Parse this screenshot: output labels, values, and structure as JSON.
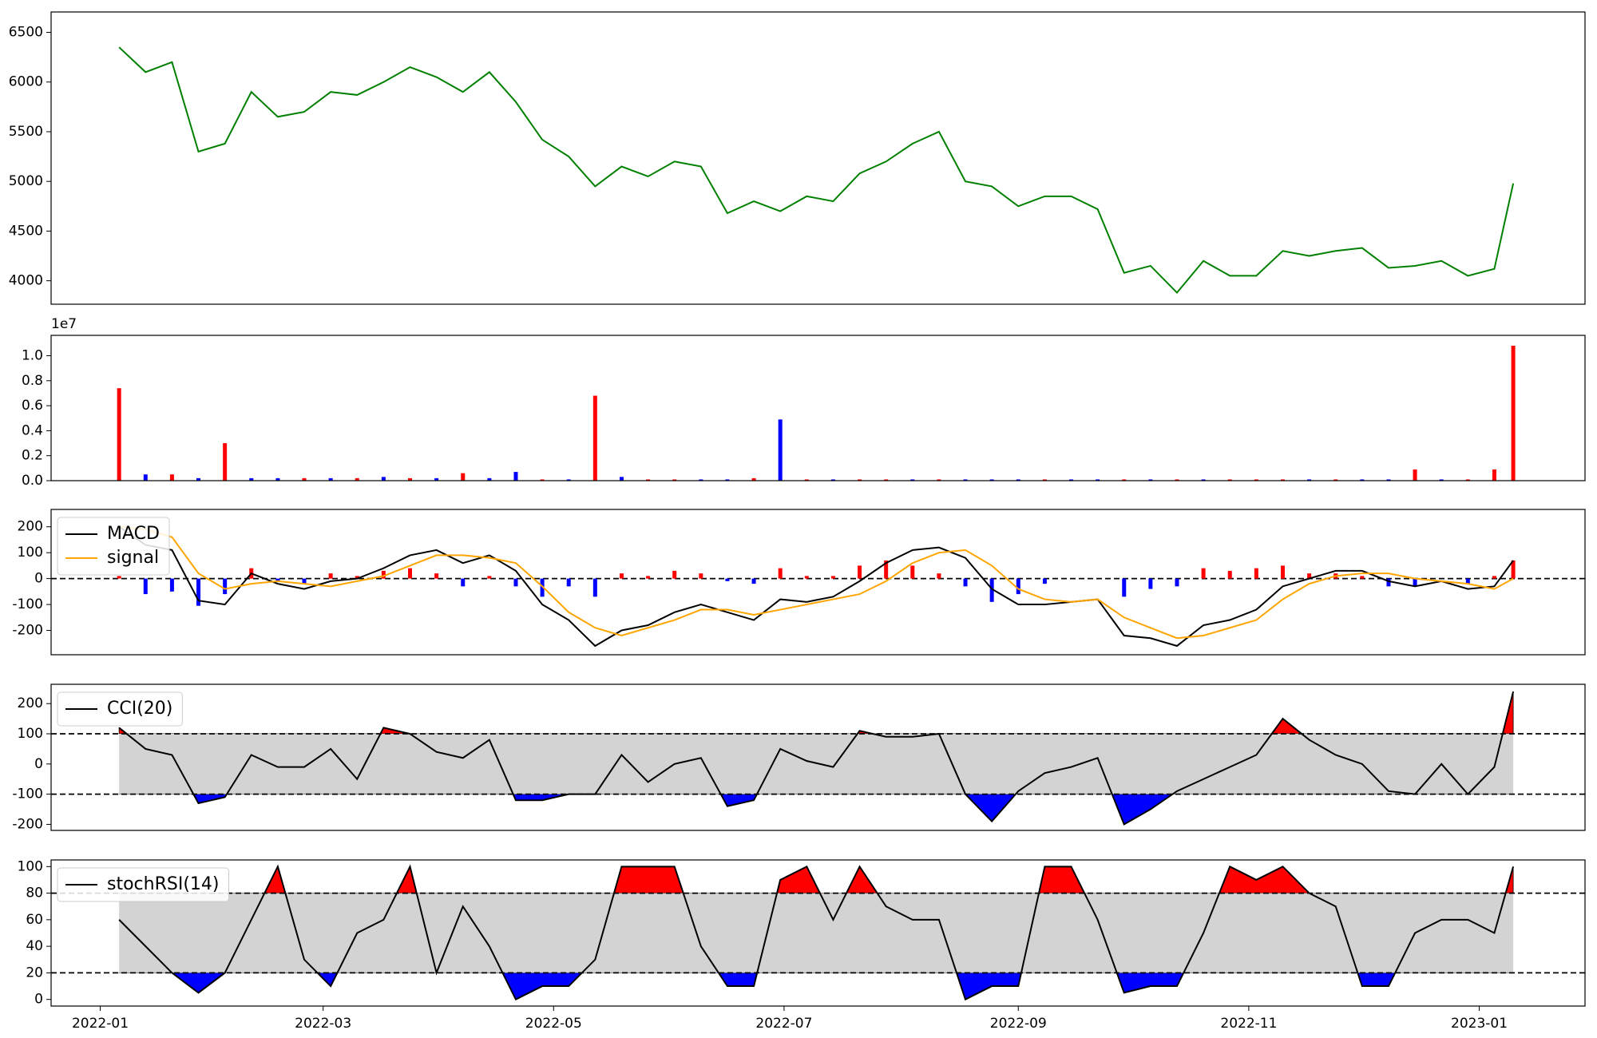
{
  "chart_data": [
    {
      "type": "line",
      "color": "green",
      "x": [
        "2022-01-06",
        "2022-01-13",
        "2022-01-20",
        "2022-01-27",
        "2022-02-03",
        "2022-02-10",
        "2022-02-17",
        "2022-02-24",
        "2022-03-03",
        "2022-03-10",
        "2022-03-17",
        "2022-03-24",
        "2022-03-31",
        "2022-04-07",
        "2022-04-14",
        "2022-04-21",
        "2022-04-28",
        "2022-05-05",
        "2022-05-12",
        "2022-05-19",
        "2022-05-26",
        "2022-06-02",
        "2022-06-09",
        "2022-06-16",
        "2022-06-23",
        "2022-06-30",
        "2022-07-07",
        "2022-07-14",
        "2022-07-21",
        "2022-07-28",
        "2022-08-04",
        "2022-08-11",
        "2022-08-18",
        "2022-08-25",
        "2022-09-01",
        "2022-09-08",
        "2022-09-15",
        "2022-09-22",
        "2022-09-29",
        "2022-10-06",
        "2022-10-13",
        "2022-10-20",
        "2022-10-27",
        "2022-11-03",
        "2022-11-10",
        "2022-11-17",
        "2022-11-24",
        "2022-12-01",
        "2022-12-08",
        "2022-12-15",
        "2022-12-22",
        "2022-12-29",
        "2023-01-05",
        "2023-01-10"
      ],
      "values": [
        6350,
        6100,
        6200,
        5300,
        5380,
        5900,
        5650,
        5700,
        5900,
        5870,
        6000,
        6150,
        6050,
        5900,
        6100,
        5800,
        5420,
        5250,
        4950,
        5150,
        5050,
        5200,
        5150,
        4680,
        4800,
        4700,
        4850,
        4800,
        5080,
        5200,
        5380,
        5500,
        5000,
        4950,
        4750,
        4850,
        4850,
        4720,
        4080,
        4150,
        3880,
        4200,
        4050,
        4050,
        4300,
        4250,
        4300,
        4330,
        4130,
        4150,
        4200,
        4050,
        4120,
        4980
      ],
      "xlim": [
        "2021-12-19",
        "2023-01-29"
      ],
      "ylim": [
        3764,
        6705
      ],
      "yticks": [
        4000,
        4500,
        5000,
        5500,
        6000,
        6500
      ]
    },
    {
      "type": "bar",
      "y_offset_label": "1e7",
      "x": [
        "2022-01-06",
        "2022-01-13",
        "2022-01-20",
        "2022-01-27",
        "2022-02-03",
        "2022-02-10",
        "2022-02-17",
        "2022-02-24",
        "2022-03-03",
        "2022-03-10",
        "2022-03-17",
        "2022-03-24",
        "2022-03-31",
        "2022-04-07",
        "2022-04-14",
        "2022-04-21",
        "2022-04-28",
        "2022-05-05",
        "2022-05-12",
        "2022-05-19",
        "2022-05-26",
        "2022-06-02",
        "2022-06-09",
        "2022-06-16",
        "2022-06-23",
        "2022-06-30",
        "2022-07-07",
        "2022-07-14",
        "2022-07-21",
        "2022-07-28",
        "2022-08-04",
        "2022-08-11",
        "2022-08-18",
        "2022-08-25",
        "2022-09-01",
        "2022-09-08",
        "2022-09-15",
        "2022-09-22",
        "2022-09-29",
        "2022-10-06",
        "2022-10-13",
        "2022-10-20",
        "2022-10-27",
        "2022-11-03",
        "2022-11-10",
        "2022-11-17",
        "2022-11-24",
        "2022-12-01",
        "2022-12-08",
        "2022-12-15",
        "2022-12-22",
        "2022-12-29",
        "2023-01-05",
        "2023-01-10"
      ],
      "values": [
        0.74,
        0.05,
        0.05,
        0.02,
        0.3,
        0.02,
        0.02,
        0.02,
        0.02,
        0.02,
        0.03,
        0.02,
        0.02,
        0.06,
        0.02,
        0.07,
        0.01,
        0.01,
        0.68,
        0.03,
        0.01,
        0.01,
        0.01,
        0.01,
        0.02,
        0.49,
        0.01,
        0.01,
        0.01,
        0.01,
        0.01,
        0.01,
        0.01,
        0.01,
        0.01,
        0.01,
        0.01,
        0.01,
        0.01,
        0.01,
        0.01,
        0.01,
        0.01,
        0.01,
        0.01,
        0.01,
        0.01,
        0.01,
        0.01,
        0.09,
        0.01,
        0.01,
        0.09,
        1.08
      ],
      "colors": [
        "red",
        "blue",
        "red",
        "blue",
        "red",
        "blue",
        "blue",
        "red",
        "blue",
        "red",
        "blue",
        "red",
        "blue",
        "red",
        "blue",
        "blue",
        "red",
        "blue",
        "red",
        "blue",
        "red",
        "red",
        "blue",
        "blue",
        "red",
        "blue",
        "red",
        "blue",
        "red",
        "red",
        "blue",
        "red",
        "blue",
        "blue",
        "blue",
        "red",
        "blue",
        "blue",
        "red",
        "blue",
        "red",
        "blue",
        "red",
        "red",
        "red",
        "blue",
        "red",
        "blue",
        "blue",
        "red",
        "blue",
        "red",
        "red",
        "red"
      ],
      "xlim": [
        "2021-12-19",
        "2023-01-29"
      ],
      "ylim": [
        0,
        1.163
      ],
      "yticks": [
        {
          "value": 0,
          "label": "0.0"
        },
        {
          "value": 0.2,
          "label": "0.2"
        },
        {
          "value": 0.4,
          "label": "0.4"
        },
        {
          "value": 0.6,
          "label": "0.6"
        },
        {
          "value": 0.8,
          "label": "0.8"
        },
        {
          "value": 1,
          "label": "1.0"
        }
      ]
    },
    {
      "type": "line",
      "legend": "upper left",
      "hline": 0,
      "x": [
        "2022-01-06",
        "2022-01-13",
        "2022-01-20",
        "2022-01-27",
        "2022-02-03",
        "2022-02-10",
        "2022-02-17",
        "2022-02-24",
        "2022-03-03",
        "2022-03-10",
        "2022-03-17",
        "2022-03-24",
        "2022-03-31",
        "2022-04-07",
        "2022-04-14",
        "2022-04-21",
        "2022-04-28",
        "2022-05-05",
        "2022-05-12",
        "2022-05-19",
        "2022-05-26",
        "2022-06-02",
        "2022-06-09",
        "2022-06-16",
        "2022-06-23",
        "2022-06-30",
        "2022-07-07",
        "2022-07-14",
        "2022-07-21",
        "2022-07-28",
        "2022-08-04",
        "2022-08-11",
        "2022-08-18",
        "2022-08-25",
        "2022-09-01",
        "2022-09-08",
        "2022-09-15",
        "2022-09-22",
        "2022-09-29",
        "2022-10-06",
        "2022-10-13",
        "2022-10-20",
        "2022-10-27",
        "2022-11-03",
        "2022-11-10",
        "2022-11-17",
        "2022-11-24",
        "2022-12-01",
        "2022-12-08",
        "2022-12-15",
        "2022-12-22",
        "2022-12-29",
        "2023-01-05",
        "2023-01-10"
      ],
      "histogram": {
        "pos_color": "red",
        "neg_color": "blue",
        "values": [
          10,
          -60,
          -50,
          -105,
          -60,
          40,
          -10,
          -20,
          20,
          10,
          30,
          40,
          20,
          -30,
          10,
          -30,
          -70,
          -30,
          -70,
          20,
          10,
          30,
          20,
          -10,
          -20,
          40,
          10,
          10,
          50,
          70,
          50,
          20,
          -30,
          -90,
          -60,
          -20,
          0,
          0,
          -70,
          -40,
          -30,
          40,
          30,
          40,
          50,
          20,
          20,
          10,
          -30,
          -30,
          0,
          -20,
          10,
          70
        ]
      },
      "series": [
        {
          "name": "MACD",
          "color": "black",
          "values": [
            200,
            130,
            110,
            -85,
            -100,
            20,
            -20,
            -40,
            -10,
            0,
            40,
            90,
            110,
            60,
            90,
            30,
            -100,
            -160,
            -260,
            -200,
            -180,
            -130,
            -100,
            -130,
            -160,
            -80,
            -90,
            -70,
            -10,
            60,
            110,
            120,
            80,
            -40,
            -100,
            -100,
            -90,
            -80,
            -220,
            -230,
            -260,
            -180,
            -160,
            -120,
            -30,
            0,
            30,
            30,
            -10,
            -30,
            -10,
            -40,
            -30,
            70
          ]
        },
        {
          "name": "signal",
          "color": "orange",
          "values": [
            200,
            190,
            160,
            20,
            -40,
            -20,
            -10,
            -20,
            -30,
            -10,
            10,
            50,
            90,
            90,
            80,
            60,
            -30,
            -130,
            -190,
            -220,
            -190,
            -160,
            -120,
            -120,
            -140,
            -120,
            -100,
            -80,
            -60,
            -10,
            60,
            100,
            110,
            50,
            -40,
            -80,
            -90,
            -80,
            -150,
            -190,
            -230,
            -220,
            -190,
            -160,
            -80,
            -20,
            10,
            20,
            20,
            0,
            -10,
            -20,
            -40,
            0
          ]
        }
      ],
      "xlim": [
        "2021-12-19",
        "2023-01-29"
      ],
      "ylim": [
        -294,
        267
      ],
      "yticks": [
        -200,
        -100,
        0,
        100,
        200
      ]
    },
    {
      "type": "line",
      "legend": "upper left",
      "thresholds": {
        "upper": 100,
        "lower": -100,
        "upper_color": "red",
        "lower_color": "blue",
        "band_color": "lightgray"
      },
      "x": [
        "2022-01-06",
        "2022-01-13",
        "2022-01-20",
        "2022-01-27",
        "2022-02-03",
        "2022-02-10",
        "2022-02-17",
        "2022-02-24",
        "2022-03-03",
        "2022-03-10",
        "2022-03-17",
        "2022-03-24",
        "2022-03-31",
        "2022-04-07",
        "2022-04-14",
        "2022-04-21",
        "2022-04-28",
        "2022-05-05",
        "2022-05-12",
        "2022-05-19",
        "2022-05-26",
        "2022-06-02",
        "2022-06-09",
        "2022-06-16",
        "2022-06-23",
        "2022-06-30",
        "2022-07-07",
        "2022-07-14",
        "2022-07-21",
        "2022-07-28",
        "2022-08-04",
        "2022-08-11",
        "2022-08-18",
        "2022-08-25",
        "2022-09-01",
        "2022-09-08",
        "2022-09-15",
        "2022-09-22",
        "2022-09-29",
        "2022-10-06",
        "2022-10-13",
        "2022-10-20",
        "2022-10-27",
        "2022-11-03",
        "2022-11-10",
        "2022-11-17",
        "2022-11-24",
        "2022-12-01",
        "2022-12-08",
        "2022-12-15",
        "2022-12-22",
        "2022-12-29",
        "2023-01-05",
        "2023-01-10"
      ],
      "series": [
        {
          "name": "CCI(20)",
          "color": "black",
          "values": [
            120,
            50,
            30,
            -130,
            -110,
            30,
            -10,
            -10,
            50,
            -50,
            120,
            100,
            40,
            20,
            80,
            -120,
            -120,
            -100,
            -100,
            30,
            -60,
            0,
            20,
            -140,
            -120,
            50,
            10,
            -10,
            110,
            90,
            90,
            100,
            -100,
            -190,
            -90,
            -30,
            -10,
            20,
            -200,
            -150,
            -90,
            -50,
            -10,
            30,
            150,
            80,
            30,
            0,
            -90,
            -100,
            0,
            -100,
            -10,
            240
          ]
        }
      ],
      "xlim": [
        "2021-12-19",
        "2023-01-29"
      ],
      "ylim": [
        -220,
        264
      ],
      "yticks": [
        -200,
        -100,
        0,
        100,
        200
      ]
    },
    {
      "type": "line",
      "legend": "upper left",
      "thresholds": {
        "upper": 80,
        "lower": 20,
        "upper_color": "red",
        "lower_color": "blue",
        "band_color": "lightgray"
      },
      "x": [
        "2022-01-06",
        "2022-01-13",
        "2022-01-20",
        "2022-01-27",
        "2022-02-03",
        "2022-02-10",
        "2022-02-17",
        "2022-02-24",
        "2022-03-03",
        "2022-03-10",
        "2022-03-17",
        "2022-03-24",
        "2022-03-31",
        "2022-04-07",
        "2022-04-14",
        "2022-04-21",
        "2022-04-28",
        "2022-05-05",
        "2022-05-12",
        "2022-05-19",
        "2022-05-26",
        "2022-06-02",
        "2022-06-09",
        "2022-06-16",
        "2022-06-23",
        "2022-06-30",
        "2022-07-07",
        "2022-07-14",
        "2022-07-21",
        "2022-07-28",
        "2022-08-04",
        "2022-08-11",
        "2022-08-18",
        "2022-08-25",
        "2022-09-01",
        "2022-09-08",
        "2022-09-15",
        "2022-09-22",
        "2022-09-29",
        "2022-10-06",
        "2022-10-13",
        "2022-10-20",
        "2022-10-27",
        "2022-11-03",
        "2022-11-10",
        "2022-11-17",
        "2022-11-24",
        "2022-12-01",
        "2022-12-08",
        "2022-12-15",
        "2022-12-22",
        "2022-12-29",
        "2023-01-05",
        "2023-01-10"
      ],
      "series": [
        {
          "name": "stochRSI(14)",
          "color": "black",
          "values": [
            60,
            40,
            20,
            5,
            20,
            60,
            100,
            30,
            10,
            50,
            60,
            100,
            20,
            70,
            40,
            0,
            10,
            10,
            30,
            100,
            100,
            100,
            40,
            10,
            10,
            90,
            100,
            60,
            100,
            70,
            60,
            60,
            0,
            10,
            10,
            100,
            100,
            60,
            5,
            10,
            10,
            50,
            100,
            90,
            100,
            80,
            70,
            10,
            10,
            50,
            60,
            60,
            50,
            100
          ]
        }
      ],
      "xlim": [
        "2021-12-19",
        "2023-01-29"
      ],
      "ylim": [
        -5,
        105
      ],
      "yticks": [
        0,
        20,
        40,
        60,
        80,
        100
      ],
      "xticks": [
        "2022-01",
        "2022-03",
        "2022-05",
        "2022-07",
        "2022-09",
        "2022-11",
        "2023-01"
      ]
    }
  ]
}
